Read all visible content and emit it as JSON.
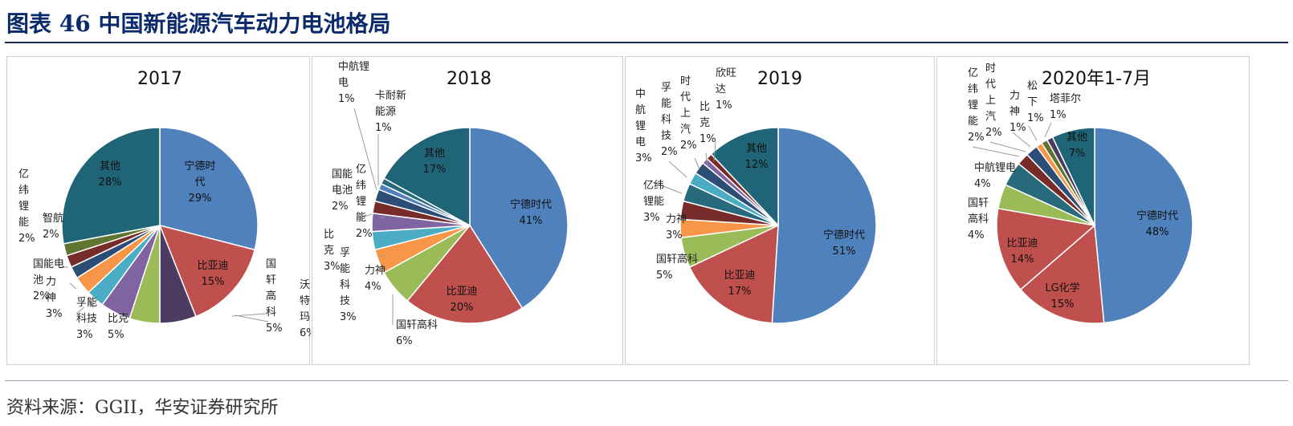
{
  "title": "图表 46 中国新能源汽车动力电池格局",
  "source": "资料来源：GGII，华安证券研究所",
  "colors": {
    "宁德时代": "#4f81bd",
    "比亚迪": "#c0504d",
    "LG化学": "#c0504d",
    "国轩高科": "#9bbb59",
    "比克": "#8064a2",
    "孚能科技": "#4bacc6",
    "力神": "#f79646",
    "国能电池": "#2c4d75",
    "亿纬锂能": "#772c2a",
    "智航": "#5f7530",
    "沃特玛": "#4d3b62",
    "中航锂电": "#276a7c",
    "卡耐新能源": "#4f81bd",
    "时代上汽": "#2c4d75",
    "欣旺达": "#772c2a",
    "松下": "#5f7530",
    "塔菲尔": "#4d3b62",
    "其他": "#1f6477"
  },
  "chart_data": [
    {
      "type": "pie",
      "title": "2017",
      "categories": [
        "宁德时代",
        "比亚迪",
        "沃特玛",
        "国轩高科",
        "比克",
        "孚能科技",
        "力神",
        "国能电池",
        "亿纬锂能",
        "智航",
        "其他"
      ],
      "values": [
        29,
        15,
        6,
        5,
        5,
        3,
        3,
        2,
        2,
        2,
        28
      ]
    },
    {
      "type": "pie",
      "title": "2018",
      "categories": [
        "宁德时代",
        "比亚迪",
        "国轩高科",
        "力神",
        "孚能科技",
        "比克",
        "亿纬锂能",
        "国能电池",
        "卡耐新能源",
        "中航锂电",
        "其他"
      ],
      "values": [
        41,
        20,
        6,
        4,
        3,
        3,
        2,
        2,
        1,
        1,
        17
      ]
    },
    {
      "type": "pie",
      "title": "2019",
      "categories": [
        "宁德时代",
        "比亚迪",
        "国轩高科",
        "力神",
        "亿纬锂能",
        "中航锂电",
        "孚能科技",
        "时代上汽",
        "比克",
        "欣旺达",
        "其他"
      ],
      "values": [
        51,
        17,
        5,
        3,
        3,
        3,
        2,
        2,
        1,
        1,
        12
      ]
    },
    {
      "type": "pie",
      "title": "2020年1-7月",
      "categories": [
        "宁德时代",
        "LG化学",
        "比亚迪",
        "国轩高科",
        "中航锂电",
        "亿纬锂能",
        "时代上汽",
        "力神",
        "松下",
        "塔菲尔",
        "其他"
      ],
      "values": [
        48,
        15,
        14,
        4,
        4,
        2,
        2,
        1,
        1,
        1,
        7
      ]
    }
  ]
}
